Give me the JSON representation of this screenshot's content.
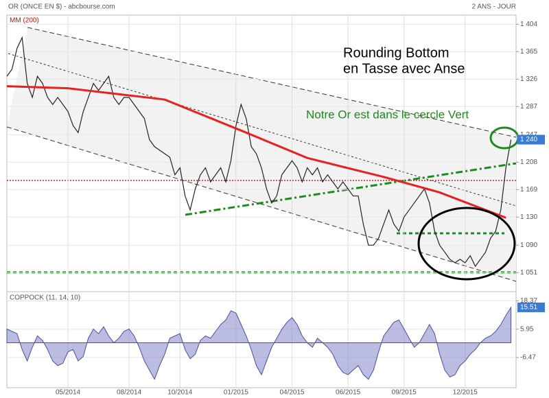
{
  "chart_data": [
    {
      "type": "line",
      "title": "OR (ONCE EN $) - abcbourse.com",
      "period": "2 ANS - JOUR",
      "annotations": [
        "Rounding Bottom",
        "en Tasse avec Anse",
        "Notre Or est dans le cercle Vert"
      ],
      "last_value": {
        "value": 1240,
        "label": "1 240"
      },
      "xlim": [
        0,
        100
      ],
      "ylim": [
        1024,
        1417
      ],
      "yticks": [
        {
          "value": 1404,
          "label": "1 404"
        },
        {
          "value": 1365,
          "label": "1 365"
        },
        {
          "value": 1326,
          "label": "1 326"
        },
        {
          "value": 1287,
          "label": "1 287"
        },
        {
          "value": 1247,
          "label": "1 247"
        },
        {
          "value": 1208,
          "label": "1 208"
        },
        {
          "value": 1169,
          "label": "1 169"
        },
        {
          "value": 1130,
          "label": "1 130"
        },
        {
          "value": 1090,
          "label": "1 090"
        },
        {
          "value": 1051,
          "label": "1 051"
        }
      ],
      "grid": true,
      "series": [
        {
          "color": "#222222",
          "x": [
            0,
            1,
            2,
            3,
            4,
            5,
            6,
            7,
            8,
            9,
            10,
            11,
            12,
            13,
            14,
            15,
            16,
            17,
            18,
            19,
            20,
            21,
            22,
            23,
            24,
            25,
            26,
            27,
            28,
            29,
            30,
            31,
            32,
            33,
            34,
            35,
            36,
            37,
            38,
            39,
            40,
            41,
            42,
            43,
            44,
            45,
            46,
            47,
            48,
            49,
            50,
            51,
            52,
            53,
            54,
            55,
            56,
            57,
            58,
            59,
            60,
            61,
            62,
            63,
            64,
            65,
            66,
            67,
            68,
            69,
            70,
            71,
            72,
            73,
            74,
            75,
            76,
            77,
            78,
            79,
            80,
            81,
            82,
            83,
            84,
            85,
            86,
            87,
            88,
            89,
            90,
            91,
            92,
            93,
            94,
            95,
            96,
            97,
            98,
            99
          ],
          "values": [
            1330,
            1340,
            1370,
            1385,
            1320,
            1300,
            1330,
            1320,
            1300,
            1290,
            1300,
            1290,
            1280,
            1260,
            1250,
            1280,
            1300,
            1320,
            1310,
            1320,
            1330,
            1300,
            1290,
            1300,
            1300,
            1290,
            1280,
            1270,
            1240,
            1230,
            1225,
            1220,
            1215,
            1190,
            1200,
            1160,
            1140,
            1170,
            1190,
            1200,
            1180,
            1190,
            1200,
            1180,
            1210,
            1260,
            1290,
            1270,
            1230,
            1220,
            1200,
            1170,
            1150,
            1160,
            1190,
            1200,
            1210,
            1200,
            1180,
            1200,
            1190,
            1200,
            1180,
            1190,
            1180,
            1170,
            1180,
            1170,
            1160,
            1160,
            1120,
            1090,
            1090,
            1100,
            1120,
            1140,
            1120,
            1110,
            1130,
            1140,
            1150,
            1160,
            1170,
            1150,
            1110,
            1090,
            1080,
            1070,
            1065,
            1070,
            1065,
            1075,
            1060,
            1070,
            1080,
            1100,
            1110,
            1140,
            1200,
            1240
          ]
        },
        {
          "name": "MM (200)",
          "color": "#e8201e",
          "x": [
            0,
            12,
            31,
            46,
            59,
            74,
            85,
            98
          ],
          "values": [
            1316,
            1313,
            1297,
            1253,
            1214,
            1187,
            1165,
            1129
          ]
        }
      ]
    },
    {
      "type": "area",
      "xlim": [
        0,
        100
      ],
      "xticks": [
        {
          "value": 12,
          "label": "05/2014"
        },
        {
          "value": 24,
          "label": "08/2014"
        },
        {
          "value": 34,
          "label": "10/2014"
        },
        {
          "value": 45,
          "label": "01/2015"
        },
        {
          "value": 56,
          "label": "04/2015"
        },
        {
          "value": 67,
          "label": "06/2015"
        },
        {
          "value": 78,
          "label": "09/2015"
        },
        {
          "value": 90,
          "label": "12/2015"
        }
      ],
      "ylim": [
        -19.7,
        22.4
      ],
      "yticks": [
        18.37,
        5.95,
        -6.47
      ],
      "last_value": 15.51,
      "series": [
        {
          "name": "COPPOCK (11, 14, 10)",
          "color": "#8d8fce",
          "x": [
            0,
            1,
            2,
            3,
            4,
            5,
            6,
            7,
            8,
            9,
            10,
            11,
            12,
            13,
            14,
            15,
            16,
            17,
            18,
            19,
            20,
            21,
            22,
            23,
            24,
            25,
            26,
            27,
            28,
            29,
            30,
            31,
            32,
            33,
            34,
            35,
            36,
            37,
            38,
            39,
            40,
            41,
            42,
            43,
            44,
            45,
            46,
            47,
            48,
            49,
            50,
            51,
            52,
            53,
            54,
            55,
            56,
            57,
            58,
            59,
            60,
            61,
            62,
            63,
            64,
            65,
            66,
            67,
            68,
            69,
            70,
            71,
            72,
            73,
            74,
            75,
            76,
            77,
            78,
            79,
            80,
            81,
            82,
            83,
            84,
            85,
            86,
            87,
            88,
            89,
            90,
            91,
            92,
            93,
            94,
            95,
            96,
            97,
            98,
            99
          ],
          "values": [
            6,
            5,
            4,
            -3,
            -8,
            -2,
            3,
            1,
            -3,
            -8,
            -10,
            -9,
            -4,
            -3,
            -8,
            -6,
            2,
            6,
            4,
            7,
            3,
            0,
            2,
            5,
            6,
            3,
            -2,
            -8,
            -12,
            -16,
            -10,
            -5,
            2,
            3,
            4,
            -3,
            -7,
            -5,
            1,
            3,
            2,
            5,
            8,
            10,
            14,
            13,
            8,
            3,
            -3,
            -10,
            -14,
            -8,
            -2,
            2,
            6,
            9,
            11,
            8,
            3,
            0,
            -2,
            2,
            0,
            -2,
            -5,
            -10,
            -13,
            -14,
            -12,
            -10,
            -14,
            -16,
            -12,
            -4,
            3,
            6,
            9,
            10,
            6,
            2,
            -2,
            0,
            4,
            8,
            4,
            -5,
            -12,
            -15,
            -14,
            -10,
            -8,
            -5,
            -3,
            0,
            2,
            3,
            5,
            8,
            12,
            15.51
          ]
        }
      ]
    }
  ]
}
